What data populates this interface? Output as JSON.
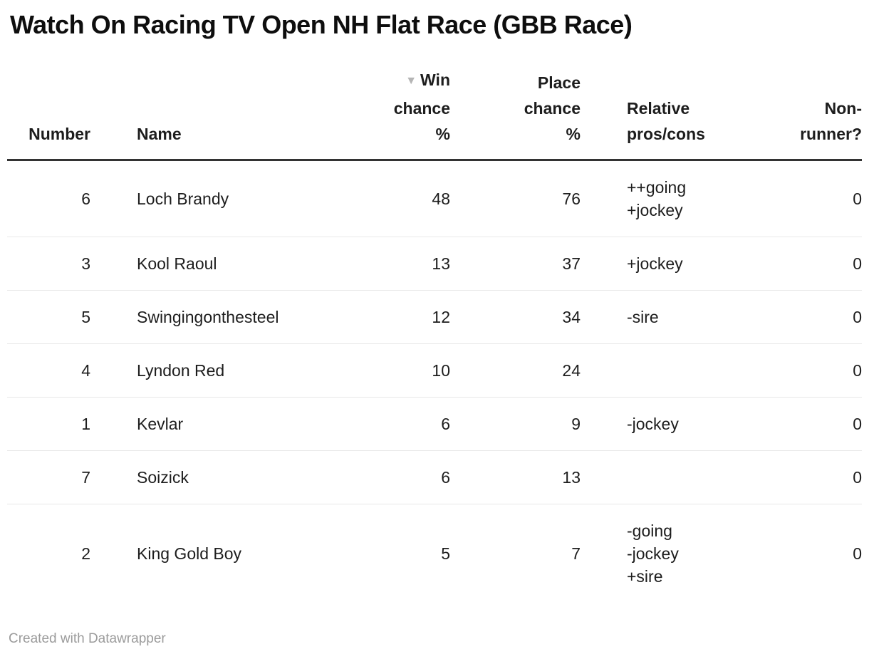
{
  "title": "Watch On Racing TV Open NH Flat Race (GBB Race)",
  "colors": {
    "text": "#1d1d1d",
    "header_border": "#333333",
    "row_border": "#e8e8e8",
    "sort_icon": "#b5b5b5",
    "attribution": "#9b9b9b",
    "background": "#ffffff"
  },
  "table": {
    "sort_icon": "▼",
    "sorted_by": "Win chance %",
    "sort_order": "descending",
    "columns": [
      {
        "key": "number",
        "label": "Number",
        "align": "right"
      },
      {
        "key": "name",
        "label": "Name",
        "align": "left"
      },
      {
        "key": "win",
        "label": "Win chance %",
        "align": "right"
      },
      {
        "key": "place",
        "label": "Place chance %",
        "align": "right"
      },
      {
        "key": "pros",
        "label": "Relative pros/cons",
        "align": "left"
      },
      {
        "key": "nonrunner",
        "label": "Non-runner?",
        "align": "right"
      }
    ],
    "rows": [
      {
        "number": "6",
        "name": "Loch Brandy",
        "win": "48",
        "place": "76",
        "pros": [
          "++going",
          "+jockey"
        ],
        "nonrunner": "0"
      },
      {
        "number": "3",
        "name": "Kool Raoul",
        "win": "13",
        "place": "37",
        "pros": [
          "+jockey"
        ],
        "nonrunner": "0"
      },
      {
        "number": "5",
        "name": "Swingingonthesteel",
        "win": "12",
        "place": "34",
        "pros": [
          "-sire"
        ],
        "nonrunner": "0"
      },
      {
        "number": "4",
        "name": "Lyndon Red",
        "win": "10",
        "place": "24",
        "pros": [],
        "nonrunner": "0"
      },
      {
        "number": "1",
        "name": "Kevlar",
        "win": "6",
        "place": "9",
        "pros": [
          "-jockey"
        ],
        "nonrunner": "0"
      },
      {
        "number": "7",
        "name": "Soizick",
        "win": "6",
        "place": "13",
        "pros": [],
        "nonrunner": "0"
      },
      {
        "number": "2",
        "name": "King Gold Boy",
        "win": "5",
        "place": "7",
        "pros": [
          "-going",
          "-jockey",
          "+sire"
        ],
        "nonrunner": "0"
      }
    ]
  },
  "footer": {
    "attribution": "Created with Datawrapper"
  },
  "chart_data": {
    "type": "table",
    "title": "Watch On Racing TV Open NH Flat Race (GBB Race)",
    "columns": [
      "Number",
      "Name",
      "Win chance %",
      "Place chance %",
      "Relative pros/cons",
      "Non-runner?"
    ],
    "rows": [
      [
        6,
        "Loch Brandy",
        48,
        76,
        "++going +jockey",
        0
      ],
      [
        3,
        "Kool Raoul",
        13,
        37,
        "+jockey",
        0
      ],
      [
        5,
        "Swingingonthesteel",
        12,
        34,
        "-sire",
        0
      ],
      [
        4,
        "Lyndon Red",
        10,
        24,
        "",
        0
      ],
      [
        1,
        "Kevlar",
        6,
        9,
        "-jockey",
        0
      ],
      [
        7,
        "Soizick",
        6,
        13,
        "",
        0
      ],
      [
        2,
        "King Gold Boy",
        5,
        7,
        "-going -jockey +sire",
        0
      ]
    ],
    "sorted_by": "Win chance %",
    "sort_order": "descending",
    "attribution": "Created with Datawrapper"
  }
}
